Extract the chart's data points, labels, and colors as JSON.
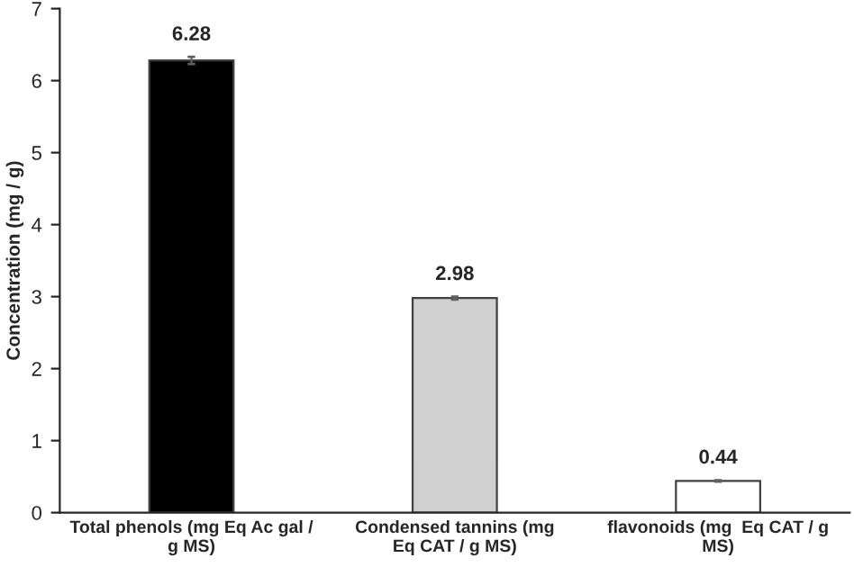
{
  "chart_data": {
    "type": "bar",
    "ylabel": "Concentration (mg / g)",
    "categories": [
      "Total phenols (mg Eq Ac gal /\ng MS)",
      "Condensed tannins (mg\nEq CAT / g MS)",
      "flavonoids (mg  Eq CAT / g\nMS)"
    ],
    "values": [
      6.28,
      2.98,
      0.44
    ],
    "colors": [
      "#000000",
      "#d0d0d0",
      "#ffffff"
    ],
    "errors": [
      0.05,
      0.02,
      0.01
    ],
    "data_labels": true,
    "ylim": [
      0,
      7
    ],
    "yticks": [
      0,
      1,
      2,
      3,
      4,
      5,
      6,
      7
    ],
    "grid": false,
    "legend": false
  }
}
